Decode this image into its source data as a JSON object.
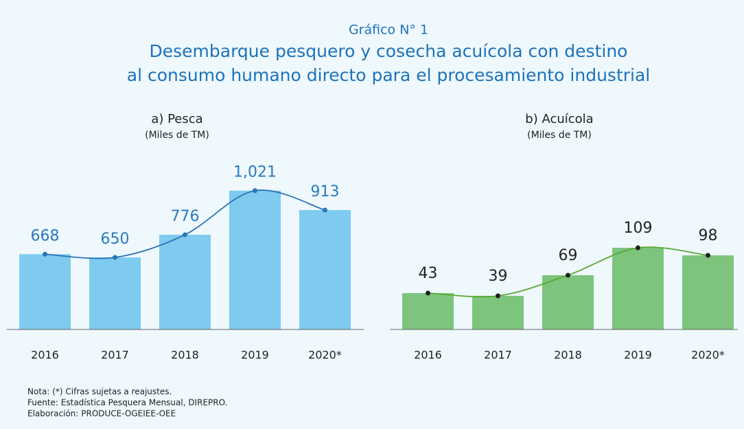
{
  "header": {
    "label": "Gráfico N° 1",
    "title_lines": [
      "Desembarque pesquero y cosecha acuícola con destino",
      "al consumo humano directo para el procesamiento industrial"
    ]
  },
  "chart_data": [
    {
      "type": "bar",
      "title": "a) Pesca",
      "subtitle": "(Miles de TM)",
      "categories": [
        "2016",
        "2017",
        "2018",
        "2019",
        "2020*"
      ],
      "values": [
        668,
        650,
        776,
        1021,
        913
      ],
      "value_labels": [
        "668",
        "650",
        "776",
        "1,021",
        "913"
      ],
      "color": "#7ecbef",
      "line_color": "#2a73b8",
      "label_color": "#2a79bd",
      "ylim": [
        250,
        1100
      ]
    },
    {
      "type": "bar",
      "title": "b) Acuícola",
      "subtitle": "(Miles de TM)",
      "categories": [
        "2016",
        "2017",
        "2018",
        "2019",
        "2020*"
      ],
      "values": [
        43,
        39,
        69,
        109,
        98
      ],
      "color": "#7dc47d",
      "line_color": "#5aa832",
      "label_color": "#222222",
      "ylim": [
        -10,
        130
      ]
    }
  ],
  "notes": [
    "Nota: (*) Cifras sujetas a reajustes.",
    "Fuente: Estadística Pesquera Mensual, DIREPRO.",
    "Elaboración: PRODUCE-OGEIEE-OEE"
  ]
}
